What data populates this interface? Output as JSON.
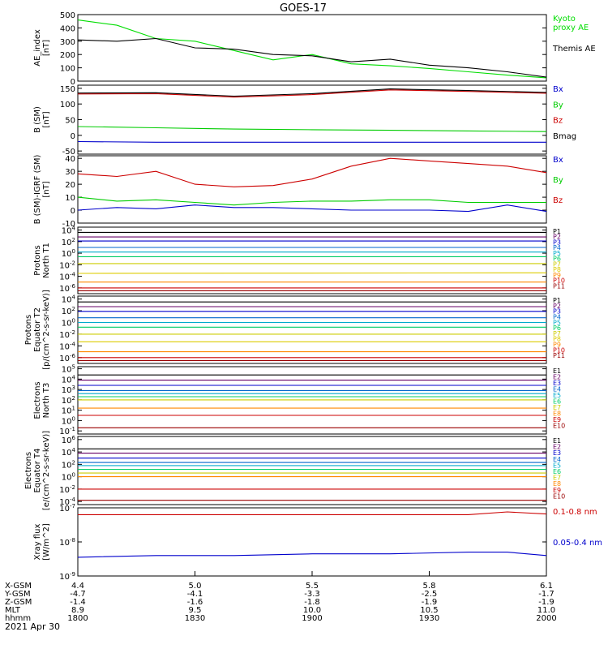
{
  "title": "GOES-17",
  "date_label": "2021 Apr 30",
  "chart_data": [
    {
      "type": "line",
      "ylabel": "AE_index\n[nT]",
      "ylim": [
        0,
        500
      ],
      "yticks": [
        "500",
        "400",
        "300",
        "200",
        "100",
        "0"
      ],
      "tick_values": [
        500,
        400,
        300,
        200,
        100,
        0
      ],
      "x": [
        0,
        10,
        20,
        30,
        40,
        50,
        60,
        70,
        80,
        90,
        100,
        110,
        120
      ],
      "series": [
        {
          "name": "Kyoto\nproxy AE",
          "color": "#00dd00",
          "values": [
            460,
            420,
            320,
            300,
            230,
            160,
            200,
            130,
            115,
            95,
            70,
            45,
            25
          ]
        },
        {
          "name": "Themis AE",
          "color": "#000000",
          "values": [
            310,
            300,
            320,
            250,
            240,
            200,
            190,
            145,
            165,
            120,
            100,
            70,
            30
          ]
        }
      ]
    },
    {
      "type": "line",
      "ylabel": "B (SM)\n[nT]",
      "ylim": [
        -60,
        160
      ],
      "yticks": [
        "150",
        "100",
        "50",
        "0",
        "-50"
      ],
      "tick_values": [
        150,
        100,
        50,
        0,
        -50
      ],
      "x": [
        0,
        20,
        40,
        60,
        80,
        100,
        120
      ],
      "series": [
        {
          "name": "Bx",
          "color": "#0000cc",
          "values": [
            -20,
            -22,
            -22,
            -22,
            -22,
            -22,
            -22
          ]
        },
        {
          "name": "By",
          "color": "#00cc00",
          "values": [
            28,
            24,
            20,
            18,
            16,
            14,
            12
          ]
        },
        {
          "name": "Bz",
          "color": "#cc0000",
          "values": [
            132,
            133,
            122,
            130,
            145,
            140,
            134
          ]
        },
        {
          "name": "Bmag",
          "color": "#000000",
          "values": [
            135,
            136,
            125,
            133,
            148,
            143,
            137
          ]
        }
      ]
    },
    {
      "type": "line",
      "ylabel": "B (SM)-IGRF (SM)\n[nT]",
      "ylim": [
        -10,
        42
      ],
      "yticks": [
        "40",
        "30",
        "20",
        "10",
        "0",
        "-10"
      ],
      "tick_values": [
        40,
        30,
        20,
        10,
        0,
        -10
      ],
      "x": [
        0,
        10,
        20,
        30,
        40,
        50,
        60,
        70,
        80,
        90,
        100,
        110,
        120
      ],
      "series": [
        {
          "name": "Bx",
          "color": "#0000cc",
          "values": [
            0,
            2,
            1,
            4,
            2,
            2,
            1,
            0,
            0,
            0,
            -1,
            4,
            -1
          ]
        },
        {
          "name": "By",
          "color": "#00cc00",
          "values": [
            10,
            7,
            8,
            6,
            4,
            6,
            7,
            7,
            8,
            8,
            6,
            6,
            6
          ]
        },
        {
          "name": "Bz",
          "color": "#cc0000",
          "values": [
            28,
            26,
            30,
            20,
            18,
            19,
            24,
            34,
            40,
            38,
            36,
            34,
            29
          ]
        }
      ]
    },
    {
      "type": "line",
      "ylabel": "Protons\nNorth T1",
      "yscale": "log",
      "yticks": [
        "10^4",
        "10^2",
        "10^0",
        "10^-2",
        "10^-4",
        "10^-6"
      ],
      "tick_values": [
        4,
        2,
        0,
        -2,
        -4,
        -6
      ],
      "ylim_log10": [
        -7,
        4.5
      ],
      "x": [
        0,
        120
      ],
      "series": [
        {
          "name": "P1",
          "color": "#000000",
          "values": [
            3.6,
            3.6
          ]
        },
        {
          "name": "P2",
          "color": "#660066",
          "values": [
            2.8,
            2.8
          ]
        },
        {
          "name": "P3",
          "color": "#0000cc",
          "values": [
            2.1,
            2.1
          ]
        },
        {
          "name": "P4",
          "color": "#0066cc",
          "values": [
            1.0,
            1.0
          ]
        },
        {
          "name": "P5",
          "color": "#00aacc",
          "values": [
            0.2,
            0.2
          ]
        },
        {
          "name": "P6",
          "color": "#00cc66",
          "values": [
            -0.6,
            -0.6
          ]
        },
        {
          "name": "P7",
          "color": "#cccc00",
          "values": [
            -1.8,
            -1.8
          ]
        },
        {
          "name": "P8",
          "color": "#ddcc00",
          "values": [
            -3.5,
            -3.4
          ]
        },
        {
          "name": "P9",
          "color": "#ff8800",
          "values": [
            -5.0,
            -5.0
          ]
        },
        {
          "name": "P10",
          "color": "#cc0000",
          "values": [
            -6.0,
            -6.0
          ]
        },
        {
          "name": "P11",
          "color": "#990000",
          "values": [
            -6.5,
            -6.5
          ]
        }
      ]
    },
    {
      "type": "line",
      "ylabel": "Protons\nEquator T2\n[p/(cm^2-s-sr-keV)]",
      "yscale": "log",
      "yticks": [
        "10^4",
        "10^2",
        "10^0",
        "10^-2",
        "10^-4",
        "10^-6"
      ],
      "tick_values": [
        4,
        2,
        0,
        -2,
        -4,
        -6
      ],
      "ylim_log10": [
        -7,
        4.5
      ],
      "x": [
        0,
        120
      ],
      "series": [
        {
          "name": "P1",
          "color": "#000000",
          "values": [
            3.5,
            3.5
          ]
        },
        {
          "name": "P2",
          "color": "#660066",
          "values": [
            2.7,
            2.7
          ]
        },
        {
          "name": "P3",
          "color": "#0000cc",
          "values": [
            1.9,
            1.9
          ]
        },
        {
          "name": "P4",
          "color": "#0066cc",
          "values": [
            0.8,
            0.8
          ]
        },
        {
          "name": "P5",
          "color": "#00aacc",
          "values": [
            0.0,
            0.0
          ]
        },
        {
          "name": "P6",
          "color": "#00cc66",
          "values": [
            -0.8,
            -0.8
          ]
        },
        {
          "name": "P7",
          "color": "#cccc00",
          "values": [
            -2.0,
            -2.0
          ]
        },
        {
          "name": "P8",
          "color": "#ddcc00",
          "values": [
            -3.3,
            -3.3
          ]
        },
        {
          "name": "P9",
          "color": "#ff8800",
          "values": [
            -5.0,
            -5.0
          ]
        },
        {
          "name": "P10",
          "color": "#cc0000",
          "values": [
            -6.0,
            -6.0
          ]
        },
        {
          "name": "P11",
          "color": "#990000",
          "values": [
            -6.5,
            -6.5
          ]
        }
      ]
    },
    {
      "type": "line",
      "ylabel": "Electrons\nNorth T3",
      "yscale": "log",
      "yticks": [
        "10^5",
        "10^4",
        "10^3",
        "10^2",
        "10^1",
        "10^0",
        "10^-1"
      ],
      "tick_values": [
        5,
        4,
        3,
        2,
        1,
        0,
        -1
      ],
      "ylim_log10": [
        -1.3,
        5.2
      ],
      "x": [
        0,
        120
      ],
      "series": [
        {
          "name": "E1",
          "color": "#000000",
          "values": [
            4.4,
            4.4
          ]
        },
        {
          "name": "E2",
          "color": "#660066",
          "values": [
            3.9,
            3.9
          ]
        },
        {
          "name": "E3",
          "color": "#0000cc",
          "values": [
            3.4,
            3.4
          ]
        },
        {
          "name": "E4",
          "color": "#0066cc",
          "values": [
            2.9,
            2.9
          ]
        },
        {
          "name": "E5",
          "color": "#00aacc",
          "values": [
            2.6,
            2.6
          ]
        },
        {
          "name": "E6",
          "color": "#00cc66",
          "values": [
            2.3,
            2.3
          ]
        },
        {
          "name": "E7",
          "color": "#cccc00",
          "values": [
            2.0,
            2.0
          ]
        },
        {
          "name": "E8",
          "color": "#ff8800",
          "values": [
            1.2,
            1.2
          ]
        },
        {
          "name": "E9",
          "color": "#cc0000",
          "values": [
            0.5,
            0.5
          ]
        },
        {
          "name": "E10",
          "color": "#990000",
          "values": [
            -0.7,
            -0.7
          ]
        }
      ]
    },
    {
      "type": "line",
      "ylabel": "Electrons\nEquator T4\n[e/(cm^2-s-sr-keV)]",
      "yscale": "log",
      "yticks": [
        "10^6",
        "10^4",
        "10^2",
        "10^0",
        "10^-2",
        "10^-4"
      ],
      "tick_values": [
        6,
        4,
        2,
        0,
        -2,
        -4
      ],
      "ylim_log10": [
        -4.5,
        6.5
      ],
      "x": [
        0,
        120
      ],
      "series": [
        {
          "name": "E1",
          "color": "#000000",
          "values": [
            4.5,
            4.5
          ]
        },
        {
          "name": "E2",
          "color": "#660066",
          "values": [
            3.8,
            3.8
          ]
        },
        {
          "name": "E3",
          "color": "#0000cc",
          "values": [
            3.0,
            3.0
          ]
        },
        {
          "name": "E4",
          "color": "#0066cc",
          "values": [
            2.3,
            2.3
          ]
        },
        {
          "name": "E5",
          "color": "#00aacc",
          "values": [
            1.8,
            1.8
          ]
        },
        {
          "name": "E6",
          "color": "#00cc66",
          "values": [
            1.2,
            1.2
          ]
        },
        {
          "name": "E7",
          "color": "#cccc00",
          "values": [
            0.6,
            0.6
          ]
        },
        {
          "name": "E8",
          "color": "#ff8800",
          "values": [
            0.0,
            0.0
          ]
        },
        {
          "name": "E9",
          "color": "#cc0000",
          "values": [
            -2.0,
            -2.0
          ]
        },
        {
          "name": "E10",
          "color": "#990000",
          "values": [
            -3.8,
            -3.8
          ]
        }
      ]
    },
    {
      "type": "line",
      "ylabel": "Xray flux\n[W/m^2]",
      "yscale": "log",
      "yticks": [
        "10^-7",
        "10^-8",
        "10^-9"
      ],
      "tick_values": [
        -7,
        -8,
        -9
      ],
      "ylim_log10": [
        -9,
        -7
      ],
      "x": [
        0,
        20,
        40,
        60,
        80,
        100,
        110,
        120
      ],
      "series": [
        {
          "name": "0.1-0.8 nm",
          "color": "#cc0000",
          "values": [
            -7.2,
            -7.2,
            -7.2,
            -7.2,
            -7.2,
            -7.2,
            -7.12,
            -7.18
          ]
        },
        {
          "name": "0.05-0.4 nm",
          "color": "#0000cc",
          "values": [
            -8.45,
            -8.4,
            -8.4,
            -8.35,
            -8.35,
            -8.3,
            -8.3,
            -8.4
          ]
        }
      ]
    }
  ],
  "orbit_table": {
    "row_labels": [
      "X-GSM",
      "Y-GSM",
      "Z-GSM",
      "MLT",
      "hhmm"
    ],
    "columns": [
      [
        "4.4",
        "-4.7",
        "-1.4",
        "8.9",
        "1800"
      ],
      [
        "5.0",
        "-4.1",
        "-1.6",
        "9.5",
        "1830"
      ],
      [
        "5.5",
        "-3.3",
        "-1.8",
        "10.0",
        "1900"
      ],
      [
        "5.8",
        "-2.5",
        "-1.9",
        "10.5",
        "1930"
      ],
      [
        "6.1",
        "-1.7",
        "-1.9",
        "11.0",
        "2000"
      ]
    ]
  }
}
